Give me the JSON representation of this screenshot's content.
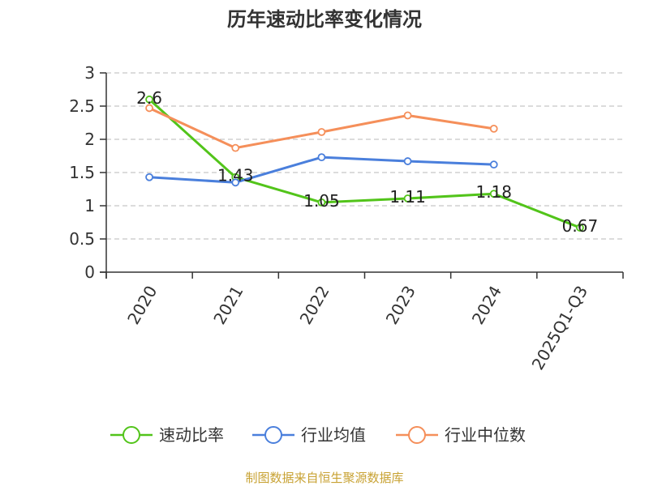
{
  "chart_data": {
    "type": "line",
    "title": "历年速动比率变化情况",
    "categories": [
      "2020",
      "2021",
      "2022",
      "2023",
      "2024",
      "2025Q1-Q3"
    ],
    "ylim": [
      0,
      3
    ],
    "yticks": [
      0,
      0.5,
      1,
      1.5,
      2,
      2.5,
      3
    ],
    "ytick_labels": [
      "0",
      "0.5",
      "1",
      "1.5",
      "2",
      "2.5",
      "3"
    ],
    "grid": true,
    "legend_position": "bottom",
    "series": [
      {
        "name": "速动比率",
        "color": "#52c41a",
        "values": [
          2.6,
          1.43,
          1.05,
          1.11,
          1.18,
          0.67
        ],
        "labels": [
          "2.6",
          "1.43",
          "1.05",
          "1.11",
          "1.18",
          "0.67"
        ]
      },
      {
        "name": "行业均值",
        "color": "#4a7fdc",
        "values": [
          1.43,
          1.35,
          1.73,
          1.67,
          1.62,
          null
        ]
      },
      {
        "name": "行业中位数",
        "color": "#f58f5a",
        "values": [
          2.47,
          1.87,
          2.11,
          2.36,
          2.16,
          null
        ]
      }
    ]
  },
  "source": "制图数据来自恒生聚源数据库"
}
